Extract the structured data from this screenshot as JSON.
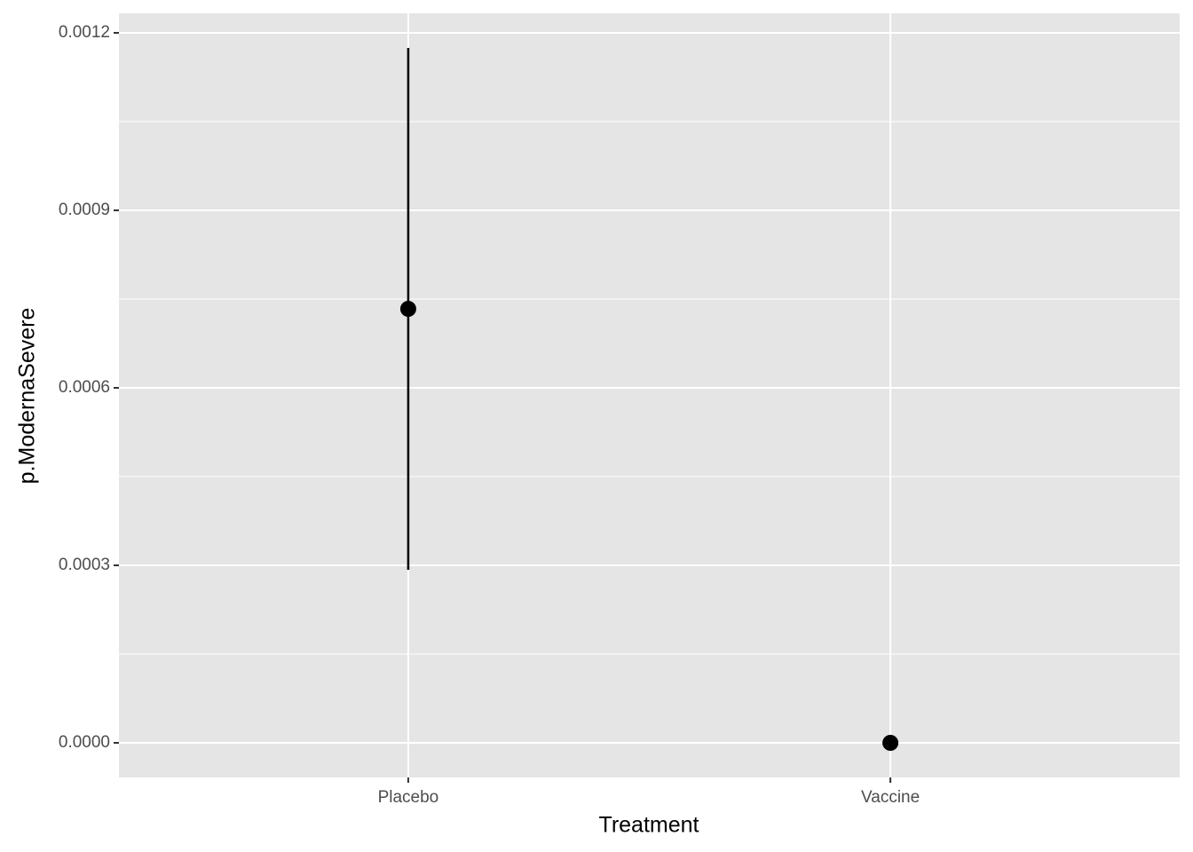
{
  "chart_data": {
    "type": "pointrange",
    "x_label": "Treatment",
    "y_label": "p.ModernaSevere",
    "categories": [
      "Placebo",
      "Vaccine"
    ],
    "values": [
      0.0007335,
      0
    ],
    "lower": [
      0.0002925,
      0
    ],
    "upper": [
      0.0011745,
      0
    ],
    "color": "#000000",
    "panel_color": "#e5e5e5",
    "ylim": [
      -5.85e-05,
      0.001233
    ],
    "yticks": [
      {
        "value": 0,
        "label": "0.0000"
      },
      {
        "value": 0.0003,
        "label": "0.0003"
      },
      {
        "value": 0.0006,
        "label": "0.0006"
      },
      {
        "value": 0.0009,
        "label": "0.0009"
      },
      {
        "value": 0.0012,
        "label": "0.0012"
      }
    ],
    "grid": true
  }
}
